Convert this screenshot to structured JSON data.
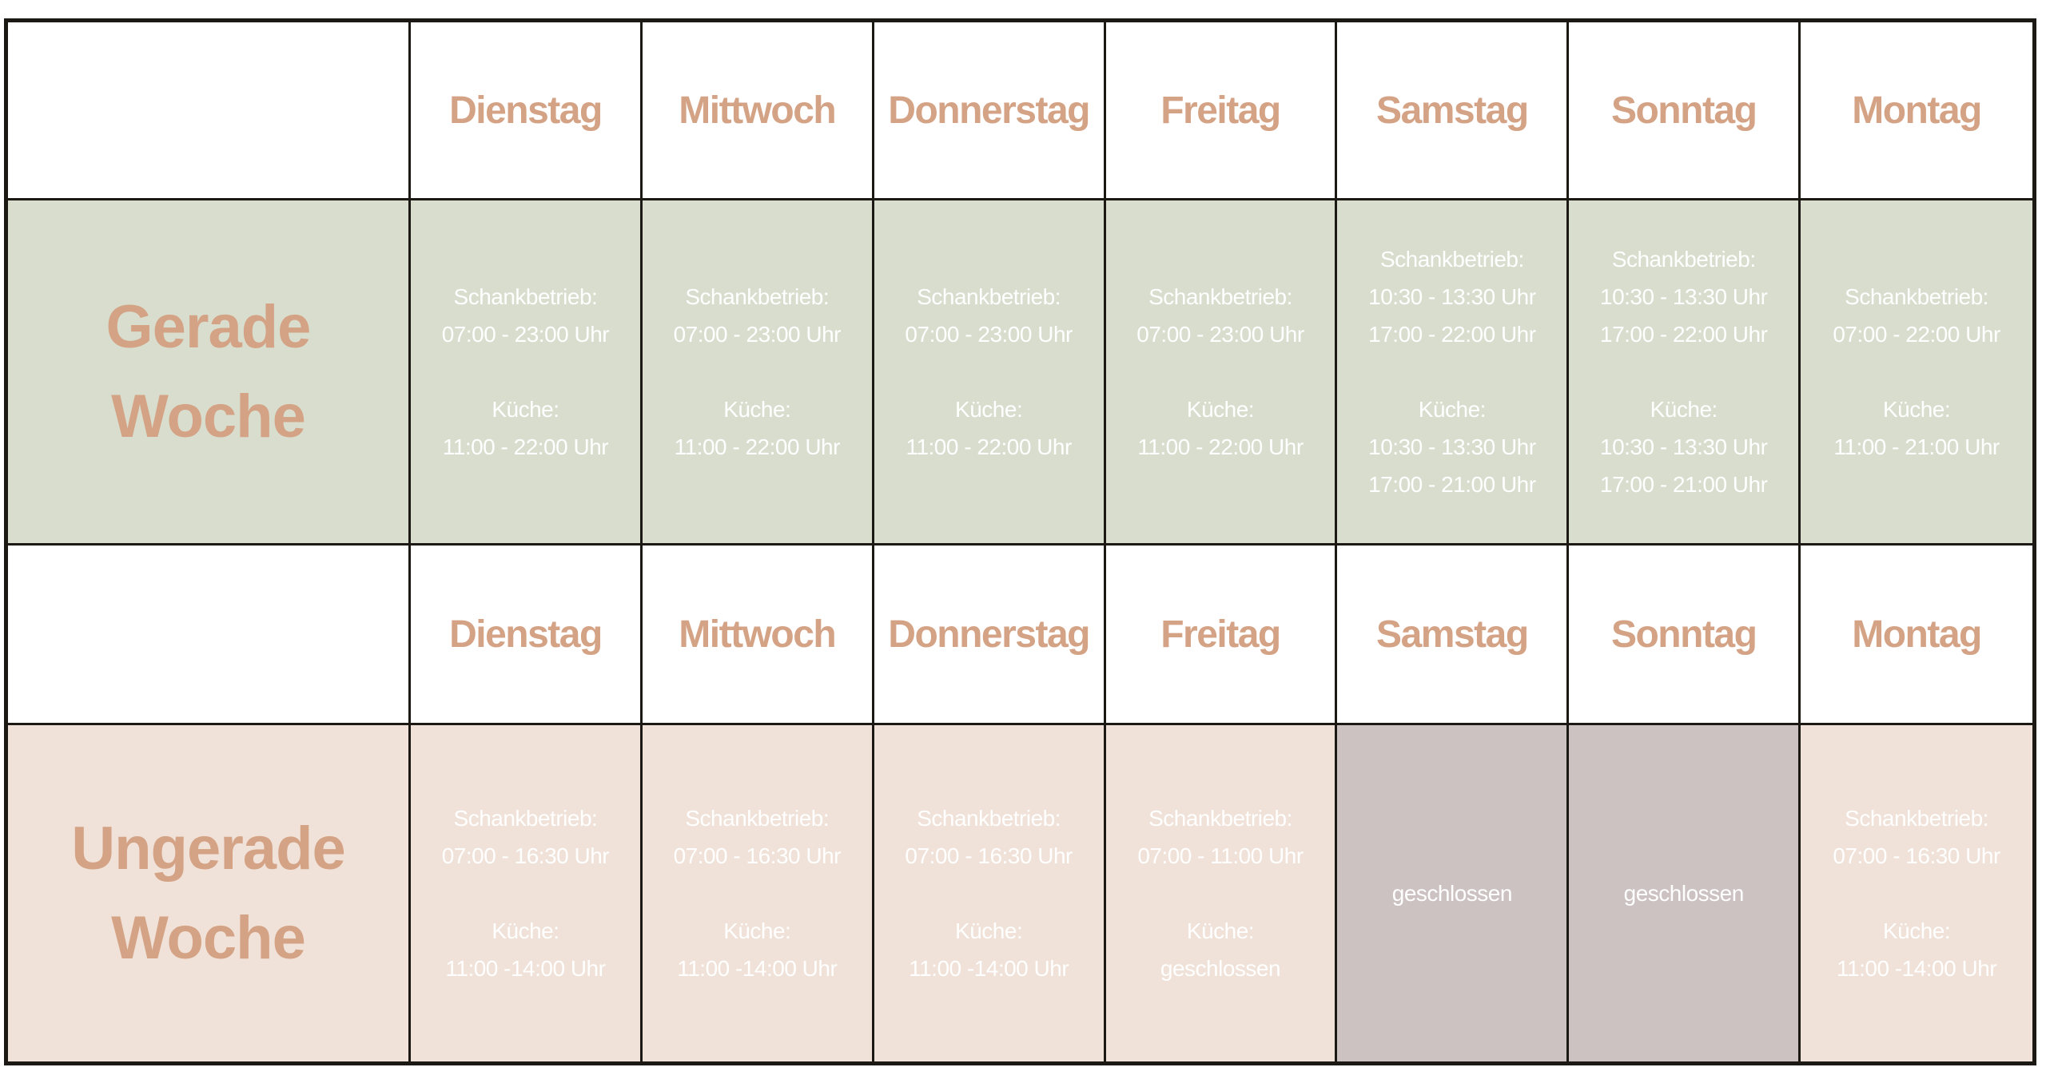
{
  "days": [
    "Dienstag",
    "Mittwoch",
    "Donnerstag",
    "Freitag",
    "Samstag",
    "Sonntag",
    "Montag"
  ],
  "colors": {
    "accent_text": "#d4a284",
    "even_bg": "#d8ddce",
    "odd_bg": "#f0e2d8",
    "closed_bg": "#cdc2c2"
  },
  "even_week": {
    "label_line1": "Gerade",
    "label_line2": "Woche",
    "cells": [
      {
        "lines": [
          "Schankbetrieb:",
          "07:00 - 23:00 Uhr",
          "",
          "Küche:",
          "11:00 - 22:00 Uhr"
        ]
      },
      {
        "lines": [
          "Schankbetrieb:",
          "07:00 - 23:00 Uhr",
          "",
          "Küche:",
          "11:00 - 22:00 Uhr"
        ]
      },
      {
        "lines": [
          "Schankbetrieb:",
          "07:00 - 23:00 Uhr",
          "",
          "Küche:",
          "11:00 - 22:00 Uhr"
        ]
      },
      {
        "lines": [
          "Schankbetrieb:",
          "07:00 - 23:00 Uhr",
          "",
          "Küche:",
          "11:00 - 22:00 Uhr"
        ]
      },
      {
        "lines": [
          "Schankbetrieb:",
          "10:30 - 13:30 Uhr",
          "17:00 - 22:00 Uhr",
          "",
          "Küche:",
          "10:30 - 13:30 Uhr",
          "17:00 - 21:00 Uhr"
        ]
      },
      {
        "lines": [
          "Schankbetrieb:",
          "10:30 - 13:30 Uhr",
          "17:00 - 22:00 Uhr",
          "",
          "Küche:",
          "10:30 - 13:30 Uhr",
          "17:00 - 21:00 Uhr"
        ]
      },
      {
        "lines": [
          "Schankbetrieb:",
          "07:00 - 22:00 Uhr",
          "",
          "Küche:",
          "11:00 - 21:00 Uhr"
        ]
      }
    ]
  },
  "odd_week": {
    "label_line1": "Ungerade",
    "label_line2": "Woche",
    "cells": [
      {
        "closed": false,
        "lines": [
          "Schankbetrieb:",
          "07:00 - 16:30 Uhr",
          "",
          "Küche:",
          "11:00 -14:00 Uhr"
        ]
      },
      {
        "closed": false,
        "lines": [
          "Schankbetrieb:",
          "07:00 - 16:30 Uhr",
          "",
          "Küche:",
          "11:00 -14:00 Uhr"
        ]
      },
      {
        "closed": false,
        "lines": [
          "Schankbetrieb:",
          "07:00 - 16:30 Uhr",
          "",
          "Küche:",
          "11:00 -14:00 Uhr"
        ]
      },
      {
        "closed": false,
        "lines": [
          "Schankbetrieb:",
          "07:00 - 11:00 Uhr",
          "",
          "Küche:",
          "geschlossen"
        ]
      },
      {
        "closed": true,
        "lines": [
          "geschlossen"
        ]
      },
      {
        "closed": true,
        "lines": [
          "geschlossen"
        ]
      },
      {
        "closed": false,
        "lines": [
          "Schankbetrieb:",
          "07:00 - 16:30 Uhr",
          "",
          "Küche:",
          "11:00 -14:00 Uhr"
        ]
      }
    ]
  }
}
